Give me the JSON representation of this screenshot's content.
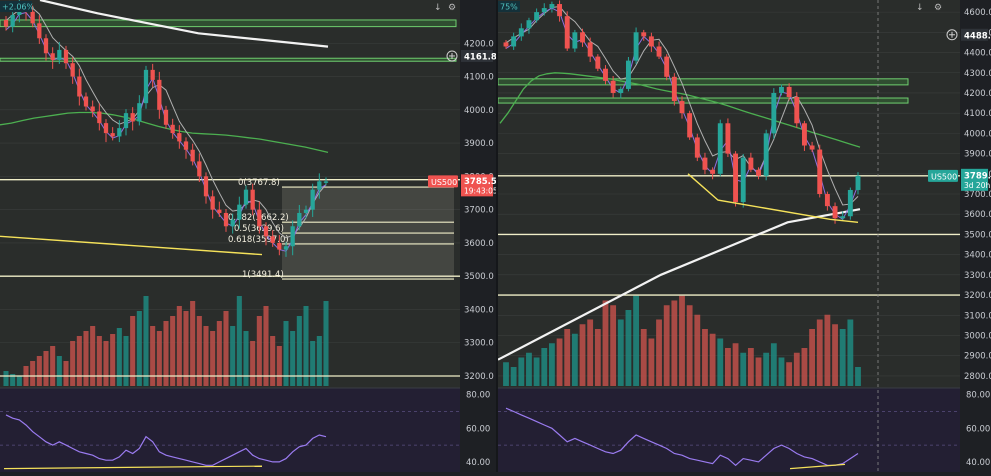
{
  "colors": {
    "bg_main": "#2a2d2b",
    "bg_rsi": "#231f33",
    "axis_bg": "#1e2024",
    "axis_text": "#c9ccd2",
    "up": "#26a69a",
    "down": "#ef5350",
    "vol_up": "#1f8a80",
    "vol_down": "#c0504a",
    "sma_white": "#f2f2f2",
    "sma_green": "#4caf50",
    "sma_gray": "#b0b0b0",
    "sma_purple": "#8e6fe0",
    "trend_yellow": "#f5e25a",
    "level_line": "#f0eec8",
    "zone_green": "#3d8b3d",
    "fib_box": "#f4efd8",
    "rsi_line": "#9a7bf0",
    "price_tag_left": "#ef5350",
    "price_tag_right": "#26a69a"
  },
  "left_chart": {
    "top_label": "+2.06%",
    "instrument_tag": "US500",
    "last_price": "3785.5",
    "countdown": "19:43:05",
    "marker_price": "4161.8",
    "axis_ticks": [
      "4200.0",
      "4100.0",
      "4000.0",
      "3900.0",
      "3800.0",
      "3700.0",
      "3600.0",
      "3500.0",
      "3400.0",
      "3300.0",
      "3200.0"
    ],
    "rsi_ticks": [
      "80.00",
      "60.00",
      "40.00"
    ],
    "fib_labels": [
      "0(3767.8)",
      "0.382(3662.2)",
      "0.5(3629.6)",
      "0.618(3597.0)",
      "1(3491.4)"
    ],
    "chart_data": {
      "type": "candlestick",
      "ylim": [
        3170,
        4330
      ],
      "rsi_ylim": [
        34,
        84
      ],
      "levels": [
        3790,
        3500,
        3200
      ],
      "fib_levels": [
        3767.8,
        3662.2,
        3629.6,
        3597.0,
        3491.4
      ],
      "supply_zones": [
        [
          4270,
          4250
        ],
        [
          4155,
          4175
        ]
      ],
      "closes": [
        4250,
        4285,
        4310,
        4295,
        4260,
        4215,
        4170,
        4150,
        4180,
        4140,
        4100,
        4040,
        4010,
        3995,
        3960,
        3930,
        3920,
        3945,
        3990,
        3965,
        4020,
        4120,
        4090,
        4000,
        3955,
        3930,
        3905,
        3880,
        3845,
        3800,
        3740,
        3700,
        3690,
        3650,
        3670,
        3715,
        3760,
        3700,
        3650,
        3620,
        3600,
        3580,
        3590,
        3650,
        3690,
        3700,
        3760,
        3785,
        3785
      ],
      "volumes": [
        0.15,
        0.12,
        0.1,
        0.2,
        0.25,
        0.3,
        0.35,
        0.4,
        0.3,
        0.25,
        0.45,
        0.5,
        0.55,
        0.6,
        0.5,
        0.45,
        0.52,
        0.58,
        0.5,
        0.7,
        0.75,
        0.9,
        0.6,
        0.55,
        0.65,
        0.7,
        0.8,
        0.75,
        0.85,
        0.7,
        0.6,
        0.55,
        0.65,
        0.75,
        0.6,
        0.9,
        0.55,
        0.45,
        0.7,
        0.8,
        0.5,
        0.4,
        0.65,
        0.55,
        0.7,
        0.8,
        0.45,
        0.5,
        0.85
      ],
      "rsi": [
        68,
        66,
        65,
        62,
        58,
        55,
        52,
        50,
        52,
        50,
        48,
        46,
        45,
        44,
        42,
        41,
        41,
        43,
        47,
        45,
        48,
        55,
        52,
        46,
        44,
        43,
        42,
        41,
        40,
        39,
        38,
        38,
        40,
        42,
        44,
        46,
        48,
        44,
        42,
        41,
        40,
        40,
        42,
        46,
        49,
        50,
        54,
        56,
        55
      ],
      "sma200": [
        [
          4330,
          0
        ],
        [
          4290,
          0.2
        ],
        [
          4230,
          0.55
        ],
        [
          4190,
          1
        ]
      ],
      "sma50": [
        3955,
        3960,
        3968,
        3975,
        3980,
        3985,
        3990,
        3992,
        3992,
        3990,
        3985,
        3978,
        3970,
        3960,
        3950,
        3942,
        3935,
        3930,
        3928,
        3926,
        3924,
        3920,
        3916,
        3912,
        3906,
        3900,
        3894,
        3888,
        3880,
        3872
      ]
    }
  },
  "right_chart": {
    "top_label": "75%",
    "instrument_tag": "US500",
    "last_price": "3789.2",
    "countdown": "3d 20h",
    "marker_price": "4488.0",
    "axis_ticks": [
      "4600.0",
      "4500.0",
      "4400.0",
      "4300.0",
      "4200.0",
      "4100.0",
      "4000.0",
      "3900.0",
      "3800.0",
      "3700.0",
      "3600.0",
      "3500.0",
      "3400.0",
      "3300.0",
      "3200.0",
      "3100.0",
      "3000.0",
      "2900.0",
      "2800.0"
    ],
    "rsi_ticks": [
      "80.00",
      "60.00",
      "40.00"
    ],
    "chart_data": {
      "type": "candlestick",
      "ylim": [
        2750,
        4660
      ],
      "rsi_ylim": [
        34,
        84
      ],
      "levels": [
        3790,
        3500,
        3200
      ],
      "supply_zones": [
        [
          4270,
          4240
        ],
        [
          4175,
          4150
        ]
      ],
      "closes": [
        4430,
        4480,
        4520,
        4560,
        4600,
        4620,
        4640,
        4580,
        4420,
        4500,
        4450,
        4380,
        4320,
        4260,
        4200,
        4220,
        4360,
        4500,
        4480,
        4430,
        4380,
        4280,
        4160,
        4100,
        3980,
        3880,
        3820,
        3800,
        4050,
        3900,
        3660,
        3880,
        3820,
        3790,
        4000,
        4200,
        4230,
        4180,
        4050,
        3940,
        3920,
        3700,
        3640,
        3580,
        3590,
        3720,
        3790
      ],
      "volumes": [
        0.25,
        0.2,
        0.3,
        0.35,
        0.3,
        0.4,
        0.45,
        0.5,
        0.6,
        0.55,
        0.65,
        0.7,
        0.6,
        0.9,
        0.85,
        0.7,
        0.8,
        0.95,
        0.6,
        0.5,
        0.7,
        0.85,
        0.9,
        0.95,
        0.85,
        0.75,
        0.6,
        0.55,
        0.5,
        0.4,
        0.45,
        0.35,
        0.4,
        0.3,
        0.35,
        0.45,
        0.3,
        0.25,
        0.35,
        0.4,
        0.6,
        0.7,
        0.75,
        0.65,
        0.6,
        0.7,
        0.2
      ],
      "rsi": [
        72,
        70,
        68,
        66,
        64,
        62,
        60,
        56,
        52,
        54,
        52,
        50,
        48,
        46,
        45,
        47,
        52,
        56,
        54,
        52,
        50,
        48,
        45,
        44,
        42,
        41,
        40,
        39,
        44,
        42,
        38,
        42,
        41,
        40,
        44,
        48,
        50,
        48,
        45,
        43,
        42,
        40,
        38,
        38,
        39,
        42,
        45
      ],
      "sma200": [
        [
          2880,
          0
        ],
        [
          3300,
          0.45
        ],
        [
          3560,
          0.8
        ],
        [
          3625,
          1
        ]
      ],
      "sma50": [
        4050,
        4100,
        4160,
        4220,
        4260,
        4285,
        4295,
        4300,
        4298,
        4295,
        4290,
        4285,
        4280,
        4275,
        4270,
        4262,
        4255,
        4248,
        4240,
        4230,
        4220,
        4212,
        4205,
        4198,
        4190,
        4180,
        4170,
        4160,
        4150,
        4138,
        4125,
        4112,
        4100,
        4088,
        4076,
        4064,
        4052,
        4040,
        4028,
        4016,
        4004,
        3992,
        3980,
        3968,
        3956,
        3944,
        3932
      ]
    }
  }
}
